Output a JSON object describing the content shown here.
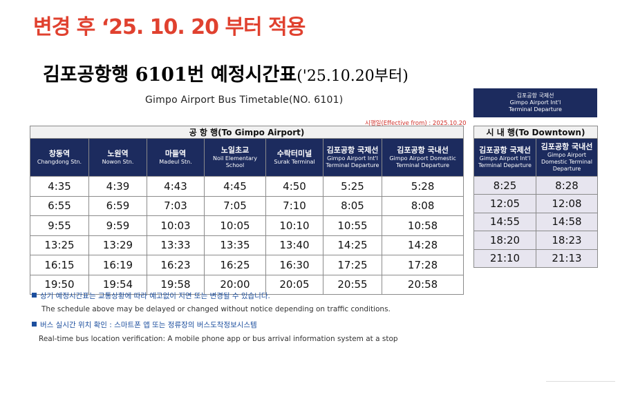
{
  "banner": "변경 후 ‘25. 10. 20 부터 적용",
  "title": {
    "main": "김포공항행 6101번 예정시간표",
    "paren": "('25.10.20부터)"
  },
  "en_title": "Gimpo Airport Bus Timetable(NO. 6101)",
  "effective": "시행일(Effective from) : 2025.10.20",
  "to_airport": {
    "section": "공 항 행(To Gimpo Airport)",
    "stops": [
      {
        "ko": "창동역",
        "en": "Changdong Stn."
      },
      {
        "ko": "노원역",
        "en": "Nowon Stn."
      },
      {
        "ko": "마들역",
        "en": "Madeul Stn."
      },
      {
        "ko": "노일초교",
        "en": "Noil Elementary School"
      },
      {
        "ko": "수락터미널",
        "en": "Surak Terminal"
      },
      {
        "ko": "김포공항 국제선",
        "en": "Gimpo Airport Int'l",
        "en2": "Terminal Departure"
      },
      {
        "ko": "김포공항 국내선",
        "en": "Gimpo Airport Domestic",
        "en2": "Terminal  Departure"
      }
    ],
    "rows": [
      [
        "4:35",
        "4:39",
        "4:43",
        "4:45",
        "4:50",
        "5:25",
        "5:28"
      ],
      [
        "6:55",
        "6:59",
        "7:03",
        "7:05",
        "7:10",
        "8:05",
        "8:08"
      ],
      [
        "9:55",
        "9:59",
        "10:03",
        "10:05",
        "10:10",
        "10:55",
        "10:58"
      ],
      [
        "13:25",
        "13:29",
        "13:33",
        "13:35",
        "13:40",
        "14:25",
        "14:28"
      ],
      [
        "16:15",
        "16:19",
        "16:23",
        "16:25",
        "16:30",
        "17:25",
        "17:28"
      ],
      [
        "19:50",
        "19:54",
        "19:58",
        "20:00",
        "20:05",
        "20:55",
        "20:58"
      ]
    ]
  },
  "side_header": {
    "l1": "김포공항 국제선",
    "l2": "Gimpo Airport  Int'l",
    "l3": "Terminal Departure"
  },
  "to_downtown": {
    "section": "시 내 행(To Downtown)",
    "stops": [
      {
        "ko": "김포공항 국제선",
        "en": "Gimpo Airport  Int'l",
        "en2": "Terminal Departure"
      },
      {
        "ko": "김포공항 국내선",
        "en": "Gimpo Airport",
        "en2": "Domestic Terminal",
        "en3": "Departure"
      }
    ],
    "rows": [
      [
        "8:25",
        "8:28"
      ],
      [
        "12:05",
        "12:08"
      ],
      [
        "14:55",
        "14:58"
      ],
      [
        "18:20",
        "18:23"
      ],
      [
        "21:10",
        "21:13"
      ]
    ]
  },
  "notes": {
    "n1_ko": "상기 예정시간표는 교통상황에 따라 예고없이 지연 또는 변경될 수 있습니다.",
    "n1_en": "The schedule above may be delayed or changed without notice depending on traffic conditions.",
    "n2_ko": "버스 실시간 위치 확인 : 스마트폰 앱 또는 정류장의 버스도착정보시스템",
    "n2_en": "Real-time bus location verification: A mobile phone app or bus arrival information system at a stop"
  },
  "colors": {
    "banner_red": "#e0412f",
    "header_navy": "#1c2b5e",
    "downtown_cell": "#e7e5ef",
    "note_blue": "#1d4f9e"
  }
}
